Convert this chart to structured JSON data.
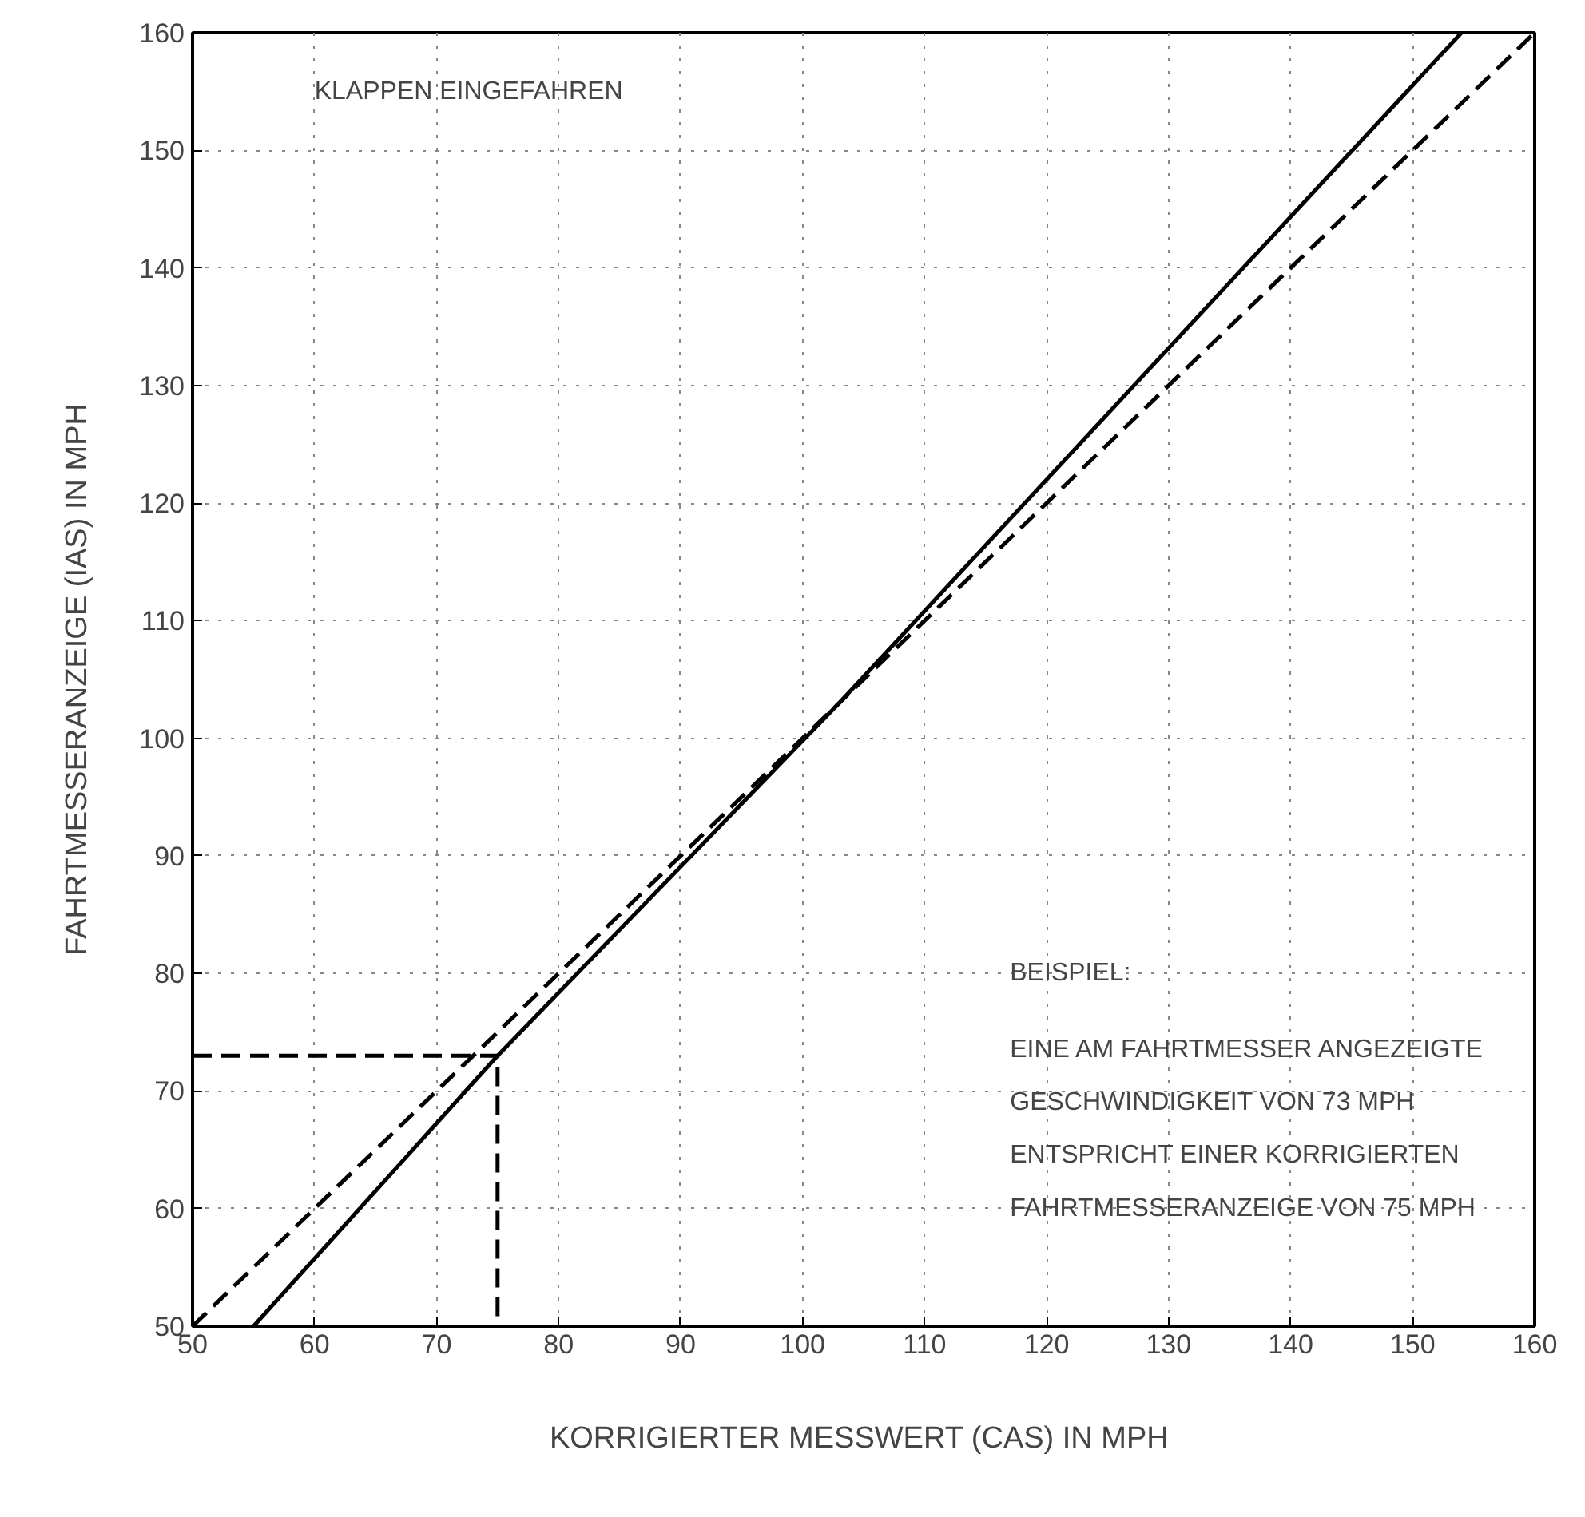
{
  "chart_data": {
    "type": "line",
    "xlabel": "KORRIGIERTER  MESSWERT (CAS) IN MPH",
    "ylabel": "FAHRTMESSERANZEIGE (IAS) IN MPH",
    "xlim": [
      50,
      160
    ],
    "ylim": [
      50,
      160
    ],
    "xticks": [
      50,
      60,
      70,
      80,
      90,
      100,
      110,
      120,
      130,
      140,
      150,
      160
    ],
    "yticks": [
      50,
      60,
      70,
      80,
      90,
      100,
      110,
      120,
      130,
      140,
      150,
      160
    ],
    "grid": true,
    "series": [
      {
        "color": "#000000",
        "line_style": "solid",
        "x": [
          55,
          75,
          103,
          154
        ],
        "values": [
          50,
          73,
          103,
          160
        ]
      },
      {
        "color": "#000000",
        "line_style": "dashed",
        "x": [
          50,
          160
        ],
        "values": [
          50,
          160
        ]
      },
      {
        "color": "#000000",
        "line_style": "dashed",
        "x": [
          50,
          75,
          75
        ],
        "values": [
          73,
          73,
          50
        ]
      }
    ],
    "annotations": [
      "KLAPPEN EINGEFAHREN",
      "BEISPIEL:",
      "EINE AM FAHRTMESSER ANGEZEIGTE",
      "GESCHWINDIGKEIT VON 73 MPH",
      "ENTSPRICHT EINER KORRIGIERTEN",
      "FAHRTMESSERANZEIGE VON 75 MPH"
    ]
  }
}
